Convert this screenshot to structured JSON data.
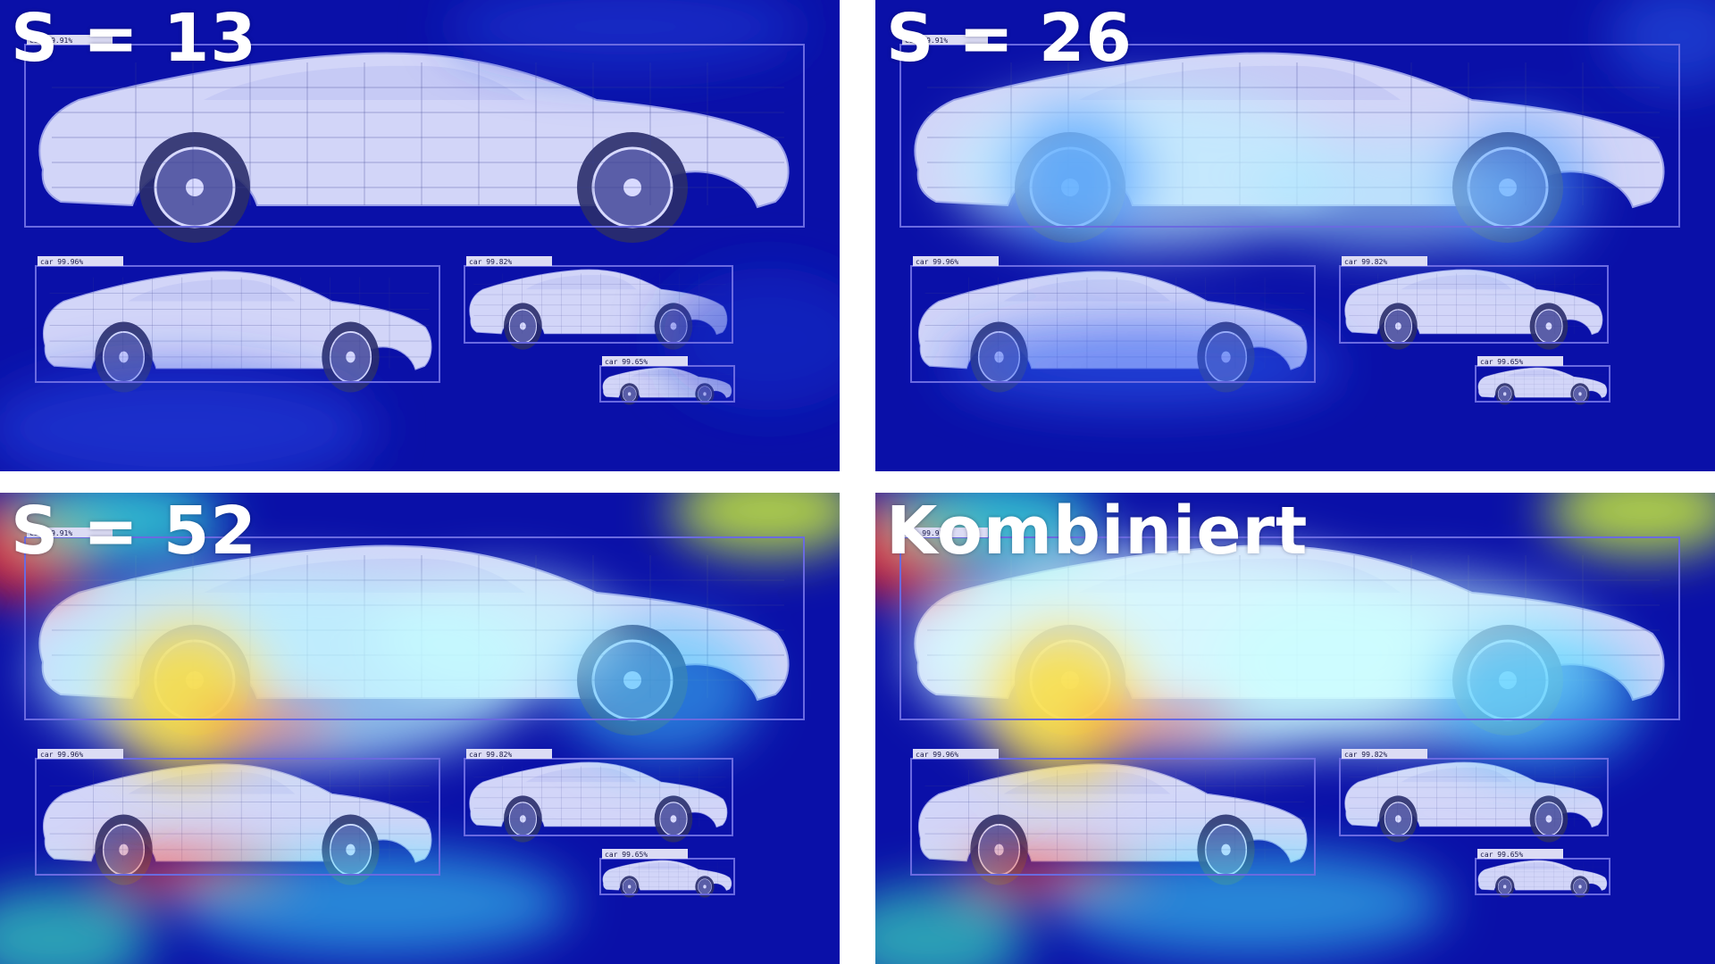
{
  "panels": [
    {
      "title": "S = 13",
      "heat": 0
    },
    {
      "title": "S = 26",
      "heat": 1
    },
    {
      "title": "S = 52",
      "heat": 2
    },
    {
      "title": "Kombiniert",
      "heat": 3
    }
  ],
  "detections": [
    {
      "label": "car",
      "score": "99.91%"
    },
    {
      "label": "car",
      "score": "99.96%"
    },
    {
      "label": "car",
      "score": "99.82%"
    },
    {
      "label": "car",
      "score": "99.65%"
    }
  ],
  "colors": {
    "heat_low": "#0a10a8",
    "heat_mid": "#3cd8ff",
    "heat_high": "#ff1a00",
    "car_body": "#e4e6ff",
    "box": "#6a6ae0"
  }
}
